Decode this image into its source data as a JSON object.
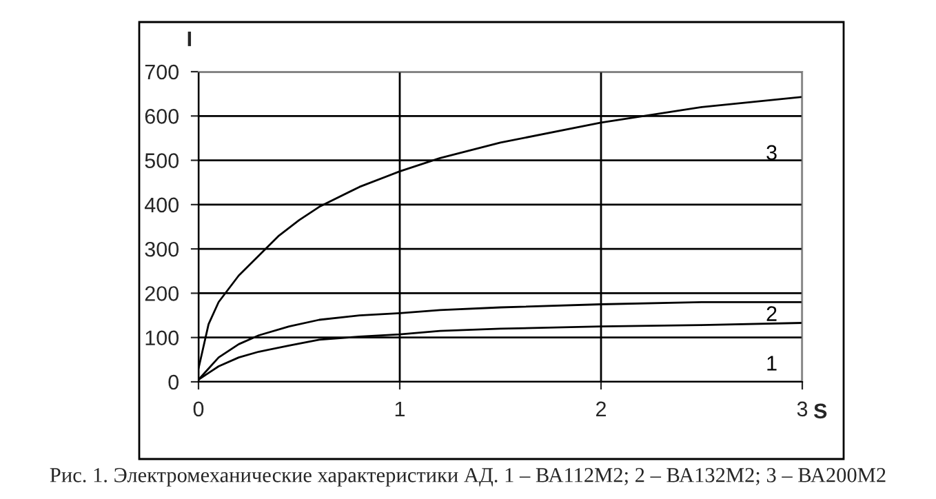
{
  "chart_data": {
    "type": "line",
    "xlabel": "S",
    "ylabel": "I",
    "xlim": [
      0,
      3
    ],
    "xticks": [
      0,
      1,
      2,
      3
    ],
    "ylim": [
      0,
      700
    ],
    "yticks": [
      0,
      100,
      200,
      300,
      400,
      500,
      600,
      700
    ],
    "grid": true,
    "line_style": "solid",
    "marker": "none",
    "series": [
      {
        "name": "1",
        "color": "#000000",
        "x": [
          0,
          0.05,
          0.1,
          0.2,
          0.3,
          0.45,
          0.6,
          0.8,
          1,
          1.2,
          1.5,
          2,
          2.5,
          3
        ],
        "values": [
          5,
          20,
          35,
          55,
          68,
          82,
          95,
          102,
          107,
          115,
          120,
          125,
          128,
          133
        ]
      },
      {
        "name": "2",
        "color": "#000000",
        "x": [
          0,
          0.05,
          0.1,
          0.2,
          0.3,
          0.45,
          0.6,
          0.8,
          1,
          1.2,
          1.5,
          2,
          2.5,
          3
        ],
        "values": [
          5,
          30,
          55,
          85,
          105,
          125,
          140,
          150,
          155,
          162,
          168,
          175,
          180,
          180
        ]
      },
      {
        "name": "3",
        "color": "#000000",
        "x": [
          0,
          0.05,
          0.1,
          0.2,
          0.3,
          0.4,
          0.5,
          0.6,
          0.8,
          1,
          1.2,
          1.5,
          2,
          2.5,
          3
        ],
        "values": [
          30,
          130,
          180,
          240,
          285,
          330,
          365,
          395,
          440,
          475,
          505,
          540,
          585,
          620,
          643
        ]
      }
    ],
    "annotations": [
      "Рис. 1. Электромеханические характеристики АД. 1 – ВА112М2; 2 – ВА132М2; 3 – ВА200М2"
    ]
  }
}
